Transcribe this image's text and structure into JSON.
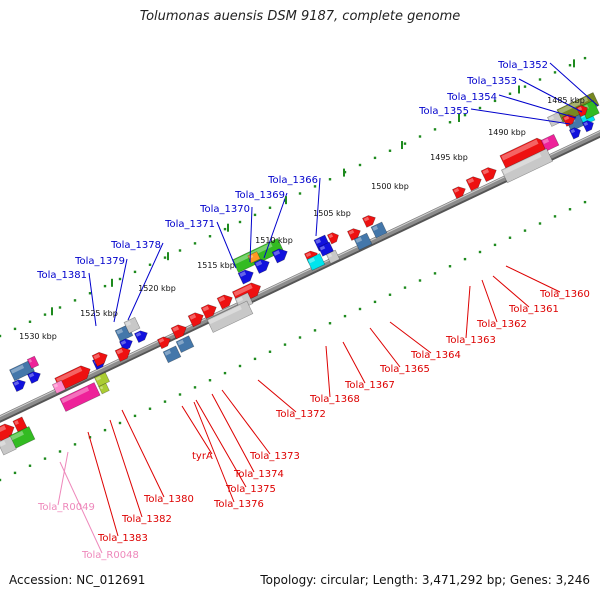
{
  "title": "Tolumonas auensis DSM 9187, complete genome",
  "footer": {
    "accession": "Accession: NC_012691",
    "summary": "Topology: circular; Length: 3,471,292 bp; Genes: 3,246"
  },
  "colors": {
    "backbone": "#8c8c8c",
    "ticks": "#1e8a1e",
    "plus_label": "#0000cc",
    "minus_label": "#dd0000",
    "rna_label": "#ee88bb",
    "red": "#ee1111",
    "blue": "#1111dd",
    "green": "#33bb22",
    "olive": "#778822",
    "steel": "#4477aa",
    "grey": "#c8c8c8",
    "cyan": "#00e5ee",
    "magenta": "#ee2299",
    "lime": "#aacc33",
    "pink": "#ff88cc",
    "orange": "#ff9922"
  },
  "kbp_marks": [
    "1485 kbp",
    "1490 kbp",
    "1495 kbp",
    "1500 kbp",
    "1505 kbp",
    "1510 kbp",
    "1515 kbp",
    "1520 kbp",
    "1525 kbp",
    "1530 kbp"
  ],
  "plus_genes": [
    "Tola_1352",
    "Tola_1353",
    "Tola_1354",
    "Tola_1355",
    "Tola_1366",
    "Tola_1369",
    "Tola_1370",
    "Tola_1371",
    "Tola_1378",
    "Tola_1379",
    "Tola_1381"
  ],
  "minus_genes": [
    "Tola_1360",
    "Tola_1361",
    "Tola_1362",
    "Tola_1363",
    "Tola_1364",
    "Tola_1365",
    "Tola_1367",
    "Tola_1368",
    "Tola_1372",
    "Tola_1373",
    "Tola_1374",
    "tyrA",
    "Tola_1375",
    "Tola_1376",
    "Tola_1380",
    "Tola_1382",
    "Tola_1383"
  ],
  "rna_genes": [
    "Tola_R0049",
    "Tola_R0048"
  ]
}
